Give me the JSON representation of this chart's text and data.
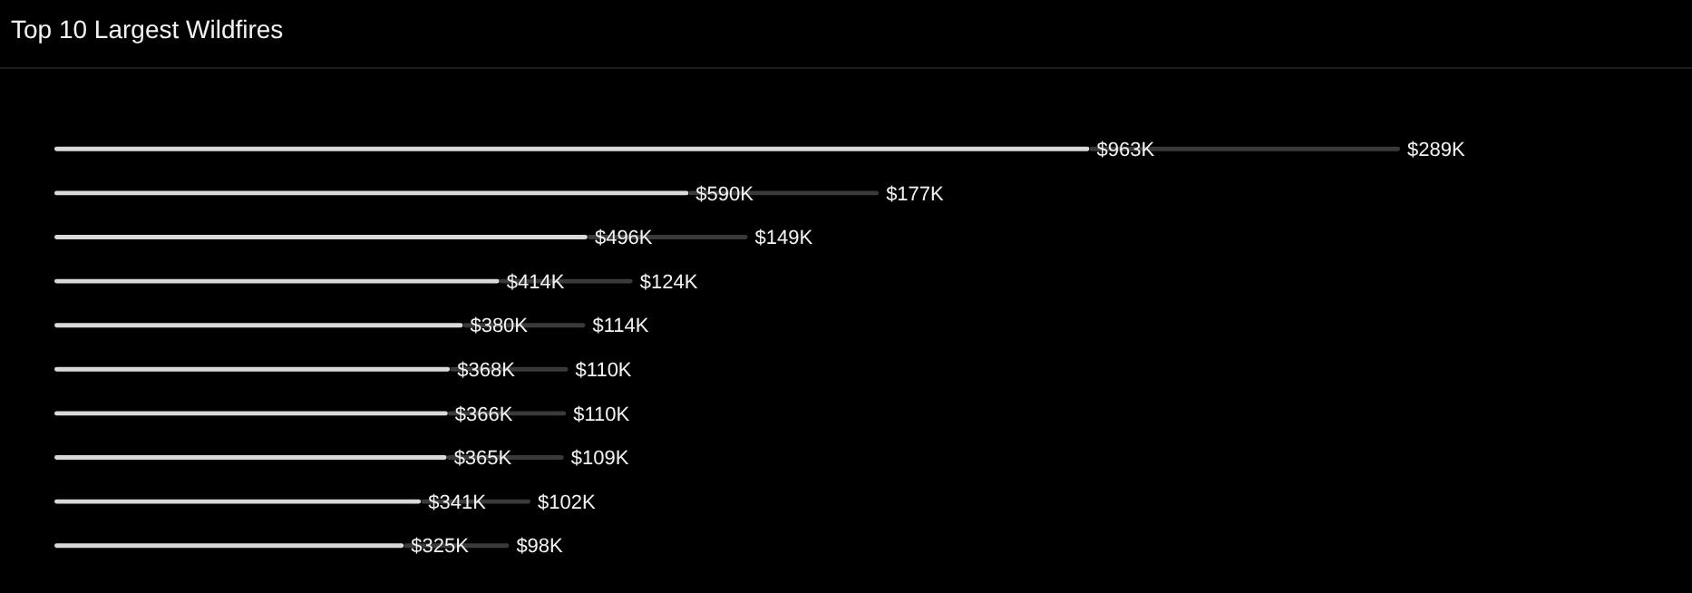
{
  "chart_data": {
    "type": "bar",
    "title": "Top 10 Largest Wildfires",
    "orientation": "horizontal",
    "stacked": true,
    "tick_labels": false,
    "grid": false,
    "legend": false,
    "categories": [
      null,
      null,
      null,
      null,
      null,
      null,
      null,
      null,
      null,
      null
    ],
    "series": [
      {
        "color": "#d9d9d9",
        "values": [
          963,
          590,
          496,
          414,
          380,
          368,
          366,
          365,
          341,
          325
        ],
        "value_labels": [
          "$963K",
          "$590K",
          "$496K",
          "$414K",
          "$380K",
          "$368K",
          "$366K",
          "$365K",
          "$341K",
          "$325K"
        ]
      },
      {
        "color": "#3a3a3a",
        "values": [
          289,
          177,
          149,
          124,
          114,
          110,
          110,
          109,
          102,
          98
        ],
        "value_labels": [
          "$289K",
          "$177K",
          "$149K",
          "$124K",
          "$114K",
          "$110K",
          "$110K",
          "$109K",
          "$102K",
          "$98K"
        ]
      }
    ]
  }
}
